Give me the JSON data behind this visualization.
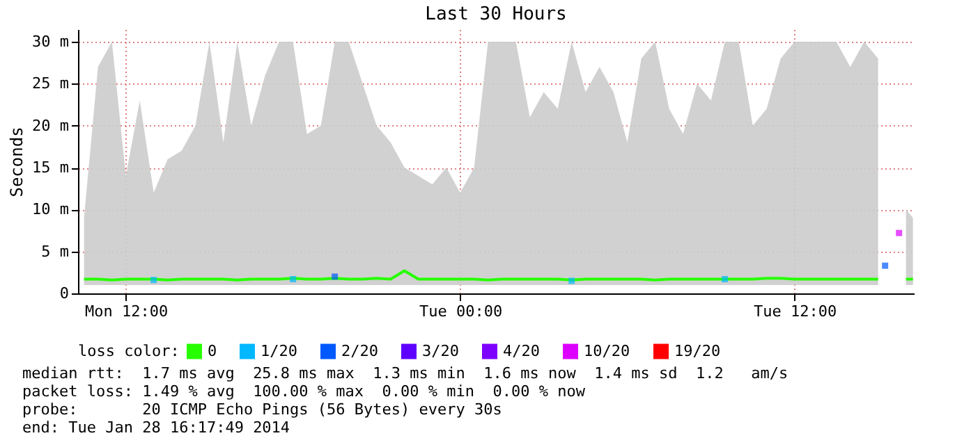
{
  "chart_data": {
    "type": "line",
    "title": "Last 30 Hours",
    "ylabel": "Seconds",
    "legend_title": "loss color:",
    "legend": "bottom",
    "grid": true,
    "xlim": [
      "2014-01-27T10:17",
      "2014-01-28T16:17"
    ],
    "xticks": [
      {
        "value": "2014-01-27T12:00",
        "label": "Mon 12:00"
      },
      {
        "value": "2014-01-28T00:00",
        "label": "Tue 00:00"
      },
      {
        "value": "2014-01-28T12:00",
        "label": "Tue 12:00"
      }
    ],
    "ylim": [
      0,
      31.5
    ],
    "yticks": [
      0,
      {
        "value": 5,
        "label": "5 m"
      },
      {
        "value": 10,
        "label": "10 m"
      },
      {
        "value": 15,
        "label": "15 m"
      },
      {
        "value": 20,
        "label": "20 m"
      },
      {
        "value": 25,
        "label": "25 m"
      },
      {
        "value": 30,
        "label": "30 m"
      }
    ],
    "x": [
      "2014-01-27T10:30",
      "2014-01-27T11:00",
      "2014-01-27T11:30",
      "2014-01-27T12:00",
      "2014-01-27T12:30",
      "2014-01-27T13:00",
      "2014-01-27T13:30",
      "2014-01-27T14:00",
      "2014-01-27T14:30",
      "2014-01-27T15:00",
      "2014-01-27T15:30",
      "2014-01-27T16:00",
      "2014-01-27T16:30",
      "2014-01-27T17:00",
      "2014-01-27T17:30",
      "2014-01-27T18:00",
      "2014-01-27T18:30",
      "2014-01-27T19:00",
      "2014-01-27T19:30",
      "2014-01-27T20:00",
      "2014-01-27T20:30",
      "2014-01-27T21:00",
      "2014-01-27T21:30",
      "2014-01-27T22:00",
      "2014-01-27T22:30",
      "2014-01-27T23:00",
      "2014-01-27T23:30",
      "2014-01-28T00:00",
      "2014-01-28T00:30",
      "2014-01-28T01:00",
      "2014-01-28T01:30",
      "2014-01-28T02:00",
      "2014-01-28T02:30",
      "2014-01-28T03:00",
      "2014-01-28T03:30",
      "2014-01-28T04:00",
      "2014-01-28T04:30",
      "2014-01-28T05:00",
      "2014-01-28T05:30",
      "2014-01-28T06:00",
      "2014-01-28T06:30",
      "2014-01-28T07:00",
      "2014-01-28T07:30",
      "2014-01-28T08:00",
      "2014-01-28T08:30",
      "2014-01-28T09:00",
      "2014-01-28T09:30",
      "2014-01-28T10:00",
      "2014-01-28T10:30",
      "2014-01-28T11:00",
      "2014-01-28T11:30",
      "2014-01-28T12:00",
      "2014-01-28T12:30",
      "2014-01-28T13:00",
      "2014-01-28T13:30",
      "2014-01-28T14:00",
      "2014-01-28T14:30",
      "2014-01-28T15:00",
      "2014-01-28T15:30",
      "2014-01-28T16:00",
      "2014-01-28T16:15"
    ],
    "series": [
      {
        "name": "0",
        "color": "#26ff00",
        "values": [
          1.7,
          1.7,
          1.6,
          1.7,
          1.7,
          1.7,
          1.6,
          1.7,
          1.7,
          1.7,
          1.7,
          1.6,
          1.7,
          1.7,
          1.7,
          1.8,
          1.7,
          1.7,
          1.8,
          1.7,
          1.7,
          1.8,
          1.7,
          2.7,
          1.7,
          1.7,
          1.7,
          1.7,
          1.7,
          1.6,
          1.7,
          1.7,
          1.7,
          1.7,
          1.7,
          1.6,
          1.7,
          1.7,
          1.7,
          1.7,
          1.7,
          1.6,
          1.7,
          1.7,
          1.7,
          1.7,
          1.7,
          1.7,
          1.7,
          1.8,
          1.8,
          1.7,
          1.7,
          1.7,
          1.7,
          1.7,
          1.7,
          1.7,
          null,
          1.7,
          1.7
        ],
        "lower": [
          1,
          1,
          1,
          1,
          1,
          1,
          1,
          1,
          1,
          1,
          1,
          1,
          1,
          1,
          1,
          1,
          1,
          1,
          1,
          1,
          1,
          1,
          1,
          1,
          1,
          1,
          1,
          1,
          1,
          1,
          1,
          1,
          1,
          1,
          1,
          1,
          1,
          1,
          1,
          1,
          1,
          1,
          1,
          1,
          1,
          1,
          1,
          1,
          1,
          1,
          1,
          1,
          1,
          1,
          1,
          1,
          1,
          1,
          null,
          1,
          1
        ],
        "upper": [
          9,
          27,
          30,
          14,
          23,
          12,
          16,
          17,
          20,
          30,
          18,
          30,
          20,
          26,
          30,
          30,
          19,
          20,
          30,
          30,
          25,
          20,
          18,
          15,
          14,
          13,
          15,
          12,
          15,
          30,
          30,
          30,
          21,
          24,
          22,
          30,
          24,
          27,
          24,
          18,
          28,
          30,
          22,
          19,
          25,
          23,
          30,
          30,
          20,
          22,
          28,
          30,
          30,
          30,
          30,
          27,
          30,
          28,
          null,
          10,
          9
        ]
      },
      {
        "name": "1/20",
        "type": "scatter",
        "marker": "square",
        "color": "#00b8ff",
        "x": [
          "2014-01-27T13:00",
          "2014-01-27T18:00",
          "2014-01-28T04:00",
          "2014-01-28T09:30"
        ],
        "values": [
          1.6,
          1.7,
          1.5,
          1.7
        ]
      },
      {
        "name": "2/20",
        "type": "scatter",
        "marker": "square",
        "color": "#0059ff",
        "x": [
          "2014-01-27T19:30",
          "2014-01-28T15:15"
        ],
        "values": [
          2,
          3.3
        ]
      },
      {
        "name": "3/20",
        "type": "scatter",
        "color": "#5e00ff",
        "values": [
          null,
          null,
          null,
          null,
          null,
          null,
          null,
          null,
          null,
          null,
          null,
          null,
          null,
          null,
          null,
          null,
          null,
          null,
          null,
          null,
          null,
          null,
          null,
          null,
          null,
          null,
          null,
          null,
          null,
          null,
          null,
          null,
          null,
          null,
          null,
          null,
          null,
          null,
          null,
          null,
          null,
          null,
          null,
          null,
          null,
          null,
          null,
          null,
          null,
          null,
          null,
          null,
          null,
          null,
          null,
          null,
          null,
          null,
          null,
          null,
          null
        ]
      },
      {
        "name": "4/20",
        "type": "scatter",
        "color": "#7e00ff",
        "values": [
          null,
          null,
          null,
          null,
          null,
          null,
          null,
          null,
          null,
          null,
          null,
          null,
          null,
          null,
          null,
          null,
          null,
          null,
          null,
          null,
          null,
          null,
          null,
          null,
          null,
          null,
          null,
          null,
          null,
          null,
          null,
          null,
          null,
          null,
          null,
          null,
          null,
          null,
          null,
          null,
          null,
          null,
          null,
          null,
          null,
          null,
          null,
          null,
          null,
          null,
          null,
          null,
          null,
          null,
          null,
          null,
          null,
          null,
          null,
          null,
          null
        ]
      },
      {
        "name": "10/20",
        "type": "scatter",
        "marker": "square",
        "color": "#dd00ff",
        "x": [
          "2014-01-28T15:45"
        ],
        "values": [
          7.2
        ]
      },
      {
        "name": "19/20",
        "type": "scatter",
        "color": "#ff0000",
        "values": [
          null,
          null,
          null,
          null,
          null,
          null,
          null,
          null,
          null,
          null,
          null,
          null,
          null,
          null,
          null,
          null,
          null,
          null,
          null,
          null,
          null,
          null,
          null,
          null,
          null,
          null,
          null,
          null,
          null,
          null,
          null,
          null,
          null,
          null,
          null,
          null,
          null,
          null,
          null,
          null,
          null,
          null,
          null,
          null,
          null,
          null,
          null,
          null,
          null,
          null,
          null,
          null,
          null,
          null,
          null,
          null,
          null,
          null,
          null,
          null,
          null
        ]
      }
    ],
    "annotations": [
      "median rtt:  1.7 ms avg  25.8 ms max  1.3 ms min  1.6 ms now  1.4 ms sd  1.2   am/s",
      "packet loss: 1.49 % avg  100.00 % max  0.00 % min  0.00 % now",
      "probe:       20 ICMP Echo Pings (56 Bytes) every 30s",
      "end: Tue Jan 28 16:17:49 2014"
    ]
  }
}
